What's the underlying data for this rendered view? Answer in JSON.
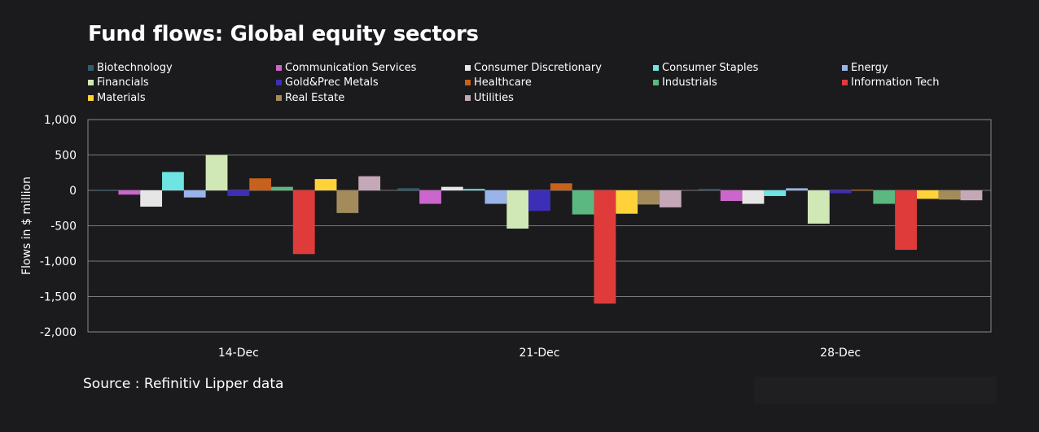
{
  "chart_data": {
    "type": "bar",
    "title": "Fund flows: Global equity sectors",
    "ylabel": "Flows in $ million",
    "xlabel": "",
    "ylim": [
      -2000,
      1000
    ],
    "yticks": [
      1000,
      500,
      0,
      -500,
      -1000,
      -1500,
      -2000
    ],
    "ytick_labels": [
      "1,000",
      "500",
      "0",
      "-500",
      "-1,000",
      "-1,500",
      "-2,000"
    ],
    "grid": true,
    "legend_position": "top",
    "categories": [
      "14-Dec",
      "21-Dec",
      "28-Dec"
    ],
    "series": [
      {
        "name": "Biotechnology",
        "color": "#2e5f6e",
        "values": [
          10,
          30,
          20
        ]
      },
      {
        "name": "Communication Services",
        "color": "#cc66cc",
        "values": [
          -60,
          -190,
          -150
        ]
      },
      {
        "name": "Consumer Discretionary",
        "color": "#e6e6e6",
        "values": [
          -230,
          50,
          -190
        ]
      },
      {
        "name": "Consumer Staples",
        "color": "#6ee5e3",
        "values": [
          260,
          20,
          -80
        ]
      },
      {
        "name": "Energy",
        "color": "#9ab4ea",
        "values": [
          -100,
          -190,
          30
        ]
      },
      {
        "name": "Financials",
        "color": "#cfe8b6",
        "values": [
          500,
          -540,
          -470
        ]
      },
      {
        "name": "Gold&Prec Metals",
        "color": "#3d2eb8",
        "values": [
          -80,
          -290,
          -40
        ]
      },
      {
        "name": "Healthcare",
        "color": "#c8611b",
        "values": [
          170,
          100,
          10
        ]
      },
      {
        "name": "Industrials",
        "color": "#5bb880",
        "values": [
          50,
          -340,
          -190
        ]
      },
      {
        "name": "Information Tech",
        "color": "#e03b3b",
        "values": [
          -900,
          -1600,
          -840
        ]
      },
      {
        "name": "Materials",
        "color": "#ffd23a",
        "values": [
          160,
          -330,
          -120
        ]
      },
      {
        "name": "Real Estate",
        "color": "#a38b5c",
        "values": [
          -320,
          -200,
          -130
        ]
      },
      {
        "name": "Utilities",
        "color": "#c4a8b8",
        "values": [
          200,
          -240,
          -140
        ]
      }
    ]
  },
  "source": "Source : Refinitiv Lipper data"
}
